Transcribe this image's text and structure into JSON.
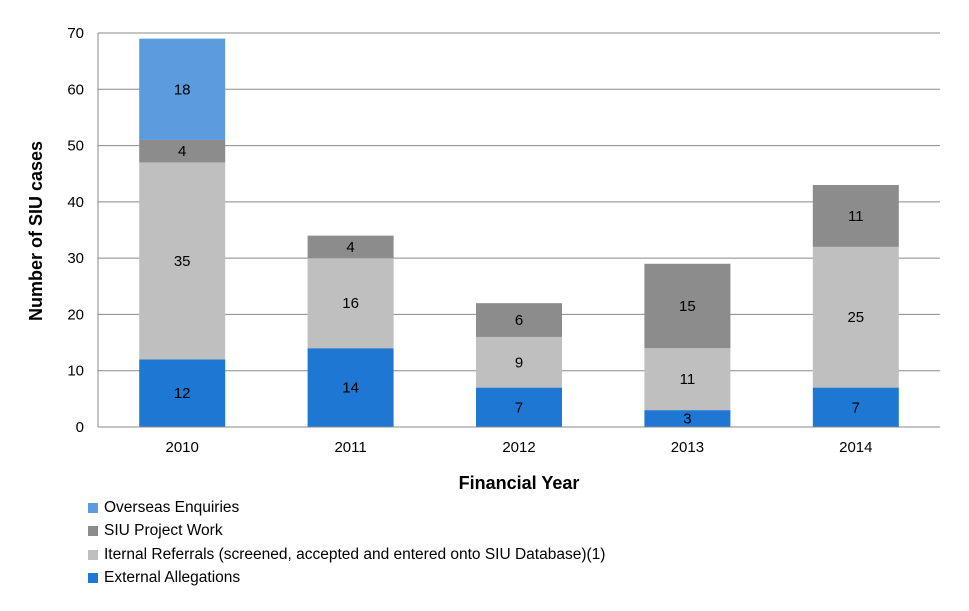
{
  "chart_data": {
    "type": "bar",
    "stacked": true,
    "categories": [
      "2010",
      "2011",
      "2012",
      "2013",
      "2014"
    ],
    "series": [
      {
        "name": "External Allegations",
        "values": [
          12,
          14,
          7,
          3,
          7
        ],
        "color": "#1f77d4"
      },
      {
        "name": "Iternal Referrals (screened, accepted and entered onto SIU Database)(1)",
        "values": [
          35,
          16,
          9,
          11,
          25
        ],
        "color": "#bfbfbf"
      },
      {
        "name": "SIU Project Work",
        "values": [
          4,
          4,
          6,
          15,
          11
        ],
        "color": "#8c8c8c"
      },
      {
        "name": "Overseas Enquiries",
        "values": [
          18,
          0,
          0,
          0,
          0
        ],
        "color": "#5b9bde"
      }
    ],
    "xlabel": "Financial Year",
    "ylabel": "Number of SIU cases",
    "ylim": [
      0,
      70
    ],
    "yticks": [
      0,
      10,
      20,
      30,
      40,
      50,
      60,
      70
    ],
    "grid": true,
    "legend_position": "bottom-left",
    "legend_order": [
      "Overseas Enquiries",
      "SIU Project Work",
      "Iternal Referrals (screened, accepted and entered onto SIU Database)(1)",
      "External Allegations"
    ]
  }
}
